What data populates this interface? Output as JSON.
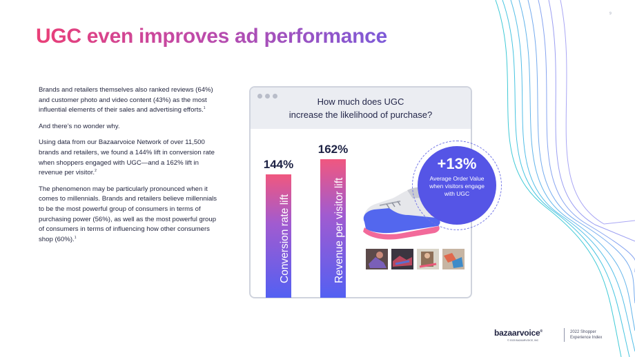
{
  "page": {
    "number": "9"
  },
  "title": "UGC even improves ad performance",
  "body": {
    "p1": "Brands and retailers themselves also ranked reviews (64%) and customer photo and video content (43%) as the most influential elements of their sales and advertising efforts.",
    "p1_note": "1",
    "p2": "And there’s no wonder why.",
    "p3": "Using data from our Bazaarvoice Network of over 11,500 brands and retailers, we found a 144% lift in conversion rate when shoppers engaged with UGC—and a 162% lift in revenue per visitor.",
    "p3_note": "2",
    "p4": "The phenomenon may be particularly pronounced when it comes to millennials. Brands and retailers believe millennials to be the most powerful group of consumers in terms of purchasing power (56%), as well as the most powerful group of consumers in terms of influencing how other consumers shop (60%).",
    "p4_note": "1"
  },
  "card": {
    "question_line1": "How much does UGC",
    "question_line2": "increase the likelihood of purchase?"
  },
  "chart_data": {
    "type": "bar",
    "categories": [
      "Conversion rate lift",
      "Revenue per visitor lift"
    ],
    "values": [
      144,
      162
    ],
    "value_labels": [
      "144%",
      "162%"
    ],
    "unit": "%"
  },
  "badge": {
    "value": "+13%",
    "description": "Average Order Value when visitors engage with UGC"
  },
  "footer": {
    "logo": "bazaarvoice",
    "logo_mark": "®",
    "copyright": "© 2023 BAZAARVOICE, INC",
    "report_line1": "2022 Shopper",
    "report_line2": "Experience Index"
  },
  "colors": {
    "title_start": "#ea3f77",
    "title_end": "#7c5ad8",
    "bar_top": "#f0577f",
    "bar_bottom": "#5360f2",
    "badge": "#5555e6"
  }
}
